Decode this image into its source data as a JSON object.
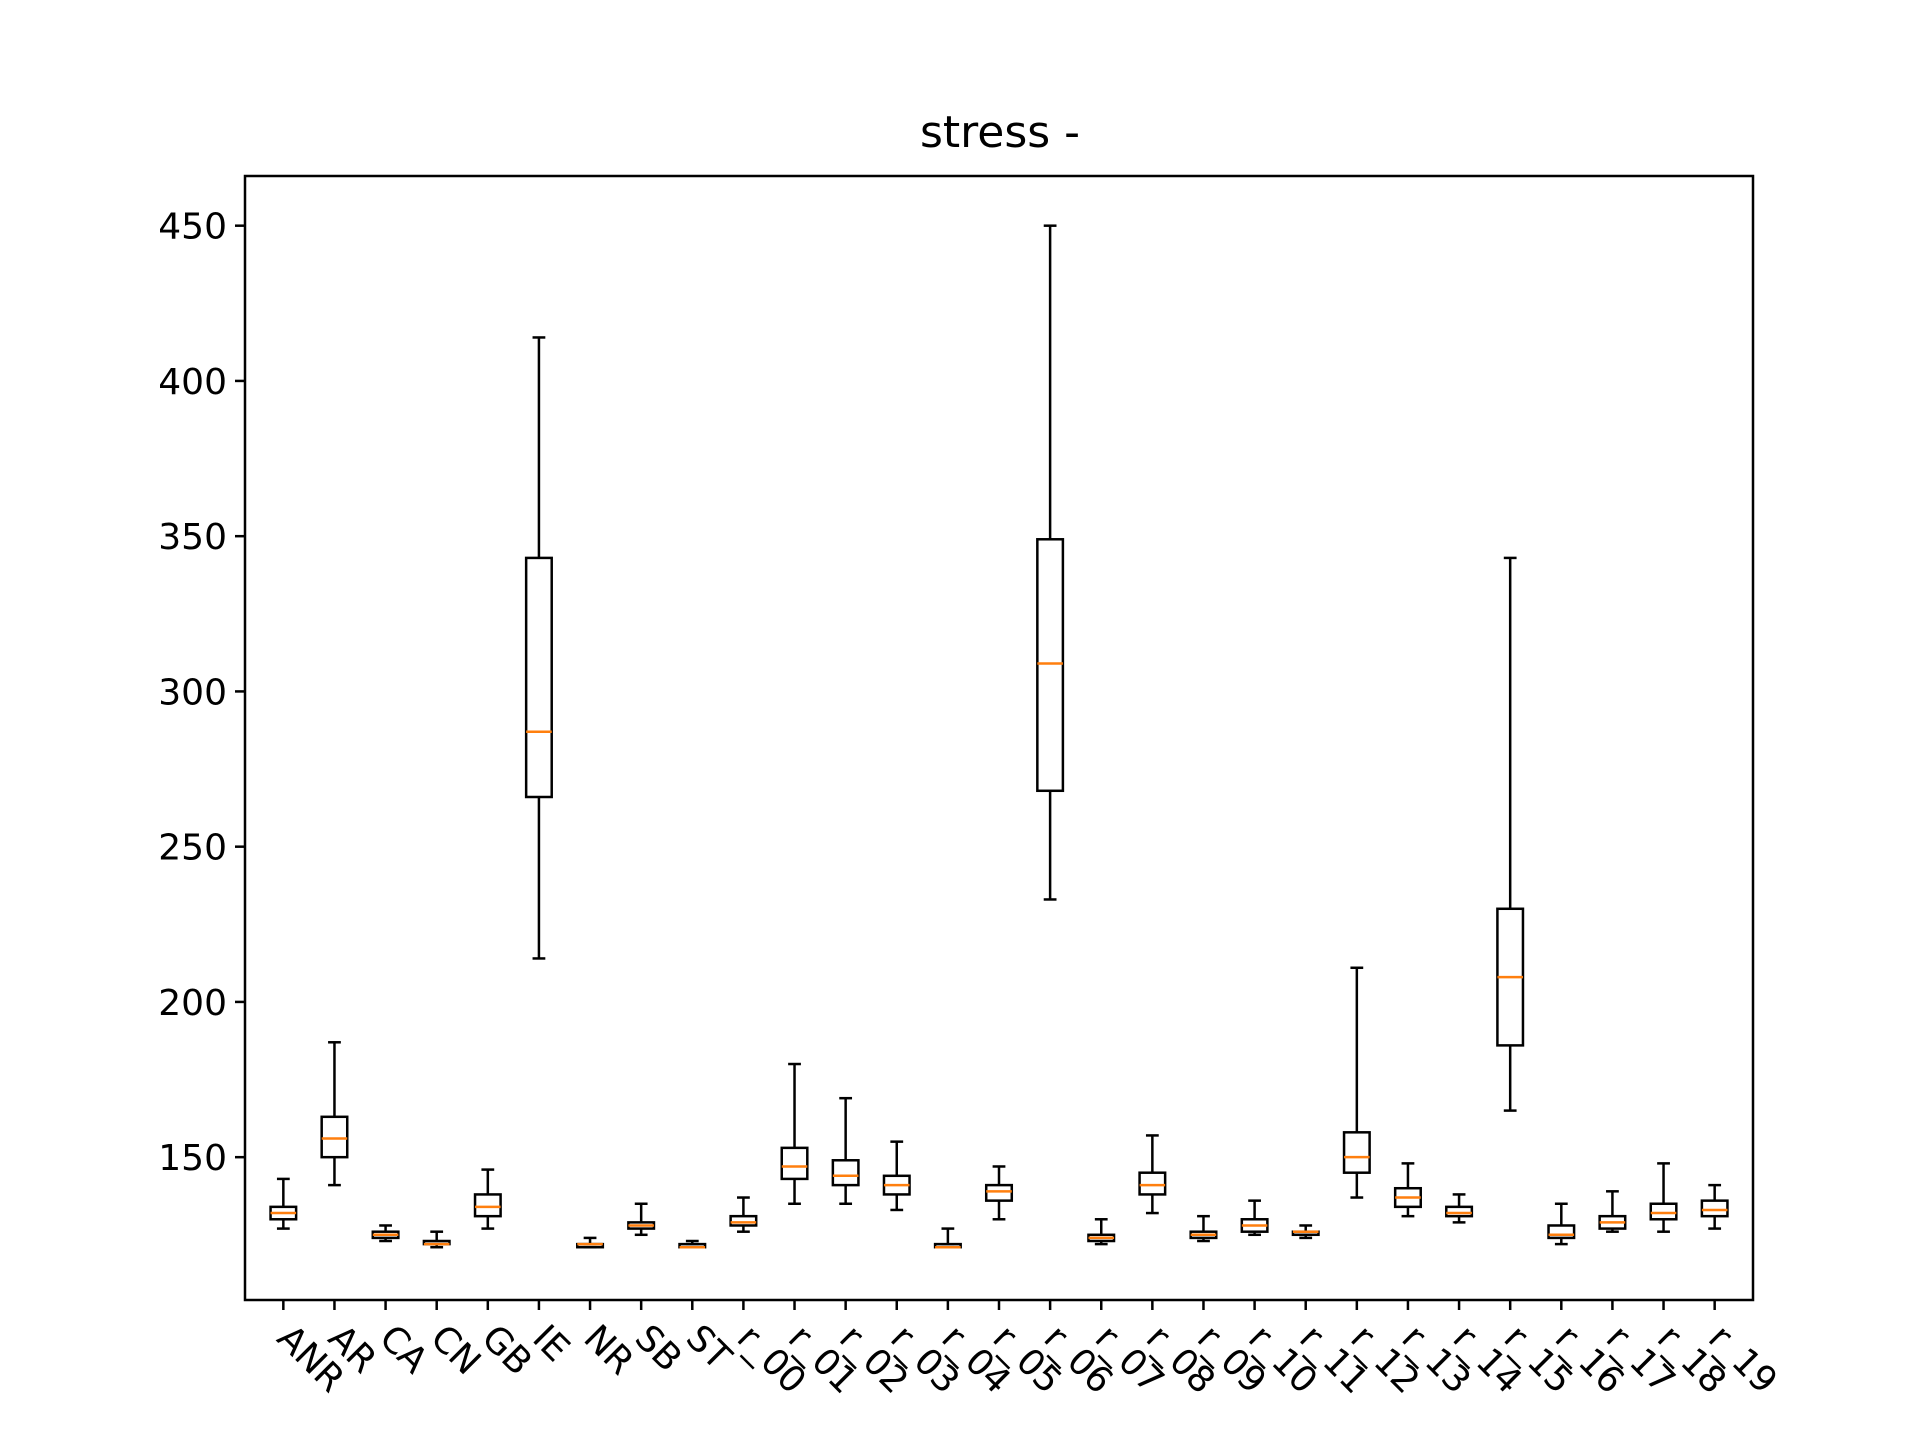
{
  "chart_data": {
    "type": "box",
    "title": "stress -",
    "xlabel": "",
    "ylabel": "",
    "ylim": [
      104,
      466
    ],
    "yticks": [
      150,
      200,
      250,
      300,
      350,
      400,
      450
    ],
    "grid": false,
    "legend": "none",
    "colors": {
      "box": "#000000",
      "median": "#ff7f0e"
    },
    "categories": [
      "ANR",
      "AR",
      "CA",
      "CN",
      "GB",
      "IE",
      "NR",
      "SB",
      "ST",
      "r_00",
      "r_01",
      "r_02",
      "r_03",
      "r_04",
      "r_05",
      "r_06",
      "r_07",
      "r_08",
      "r_09",
      "r_10",
      "r_11",
      "r_12",
      "r_13",
      "r_14",
      "r_15",
      "r_16",
      "r_17",
      "r_18",
      "r_19"
    ],
    "boxes": [
      {
        "whisker_low": 127,
        "q1": 130,
        "median": 132,
        "q3": 134,
        "whisker_high": 143
      },
      {
        "whisker_low": 141,
        "q1": 150,
        "median": 156,
        "q3": 163,
        "whisker_high": 187
      },
      {
        "whisker_low": 123,
        "q1": 124,
        "median": 125,
        "q3": 126,
        "whisker_high": 128
      },
      {
        "whisker_low": 121,
        "q1": 122,
        "median": 122,
        "q3": 123,
        "whisker_high": 126
      },
      {
        "whisker_low": 127,
        "q1": 131,
        "median": 134,
        "q3": 138,
        "whisker_high": 146
      },
      {
        "whisker_low": 214,
        "q1": 266,
        "median": 287,
        "q3": 343,
        "whisker_high": 414
      },
      {
        "whisker_low": 121,
        "q1": 121,
        "median": 122,
        "q3": 122,
        "whisker_high": 124
      },
      {
        "whisker_low": 125,
        "q1": 127,
        "median": 128,
        "q3": 129,
        "whisker_high": 135
      },
      {
        "whisker_low": 121,
        "q1": 121,
        "median": 121,
        "q3": 122,
        "whisker_high": 123
      },
      {
        "whisker_low": 126,
        "q1": 128,
        "median": 129,
        "q3": 131,
        "whisker_high": 137
      },
      {
        "whisker_low": 135,
        "q1": 143,
        "median": 147,
        "q3": 153,
        "whisker_high": 180
      },
      {
        "whisker_low": 135,
        "q1": 141,
        "median": 144,
        "q3": 149,
        "whisker_high": 169
      },
      {
        "whisker_low": 133,
        "q1": 138,
        "median": 141,
        "q3": 144,
        "whisker_high": 155
      },
      {
        "whisker_low": 121,
        "q1": 121,
        "median": 121,
        "q3": 122,
        "whisker_high": 127
      },
      {
        "whisker_low": 130,
        "q1": 136,
        "median": 139,
        "q3": 141,
        "whisker_high": 147
      },
      {
        "whisker_low": 233,
        "q1": 268,
        "median": 309,
        "q3": 349,
        "whisker_high": 450
      },
      {
        "whisker_low": 122,
        "q1": 123,
        "median": 124,
        "q3": 125,
        "whisker_high": 130
      },
      {
        "whisker_low": 132,
        "q1": 138,
        "median": 141,
        "q3": 145,
        "whisker_high": 157
      },
      {
        "whisker_low": 123,
        "q1": 124,
        "median": 125,
        "q3": 126,
        "whisker_high": 131
      },
      {
        "whisker_low": 125,
        "q1": 126,
        "median": 128,
        "q3": 130,
        "whisker_high": 136
      },
      {
        "whisker_low": 124,
        "q1": 125,
        "median": 126,
        "q3": 126,
        "whisker_high": 128
      },
      {
        "whisker_low": 137,
        "q1": 145,
        "median": 150,
        "q3": 158,
        "whisker_high": 211
      },
      {
        "whisker_low": 131,
        "q1": 134,
        "median": 137,
        "q3": 140,
        "whisker_high": 148
      },
      {
        "whisker_low": 129,
        "q1": 131,
        "median": 132,
        "q3": 134,
        "whisker_high": 138
      },
      {
        "whisker_low": 165,
        "q1": 186,
        "median": 208,
        "q3": 230,
        "whisker_high": 343
      },
      {
        "whisker_low": 122,
        "q1": 124,
        "median": 125,
        "q3": 128,
        "whisker_high": 135
      },
      {
        "whisker_low": 126,
        "q1": 127,
        "median": 129,
        "q3": 131,
        "whisker_high": 139
      },
      {
        "whisker_low": 126,
        "q1": 130,
        "median": 132,
        "q3": 135,
        "whisker_high": 148
      },
      {
        "whisker_low": 127,
        "q1": 131,
        "median": 133,
        "q3": 136,
        "whisker_high": 141
      }
    ]
  }
}
